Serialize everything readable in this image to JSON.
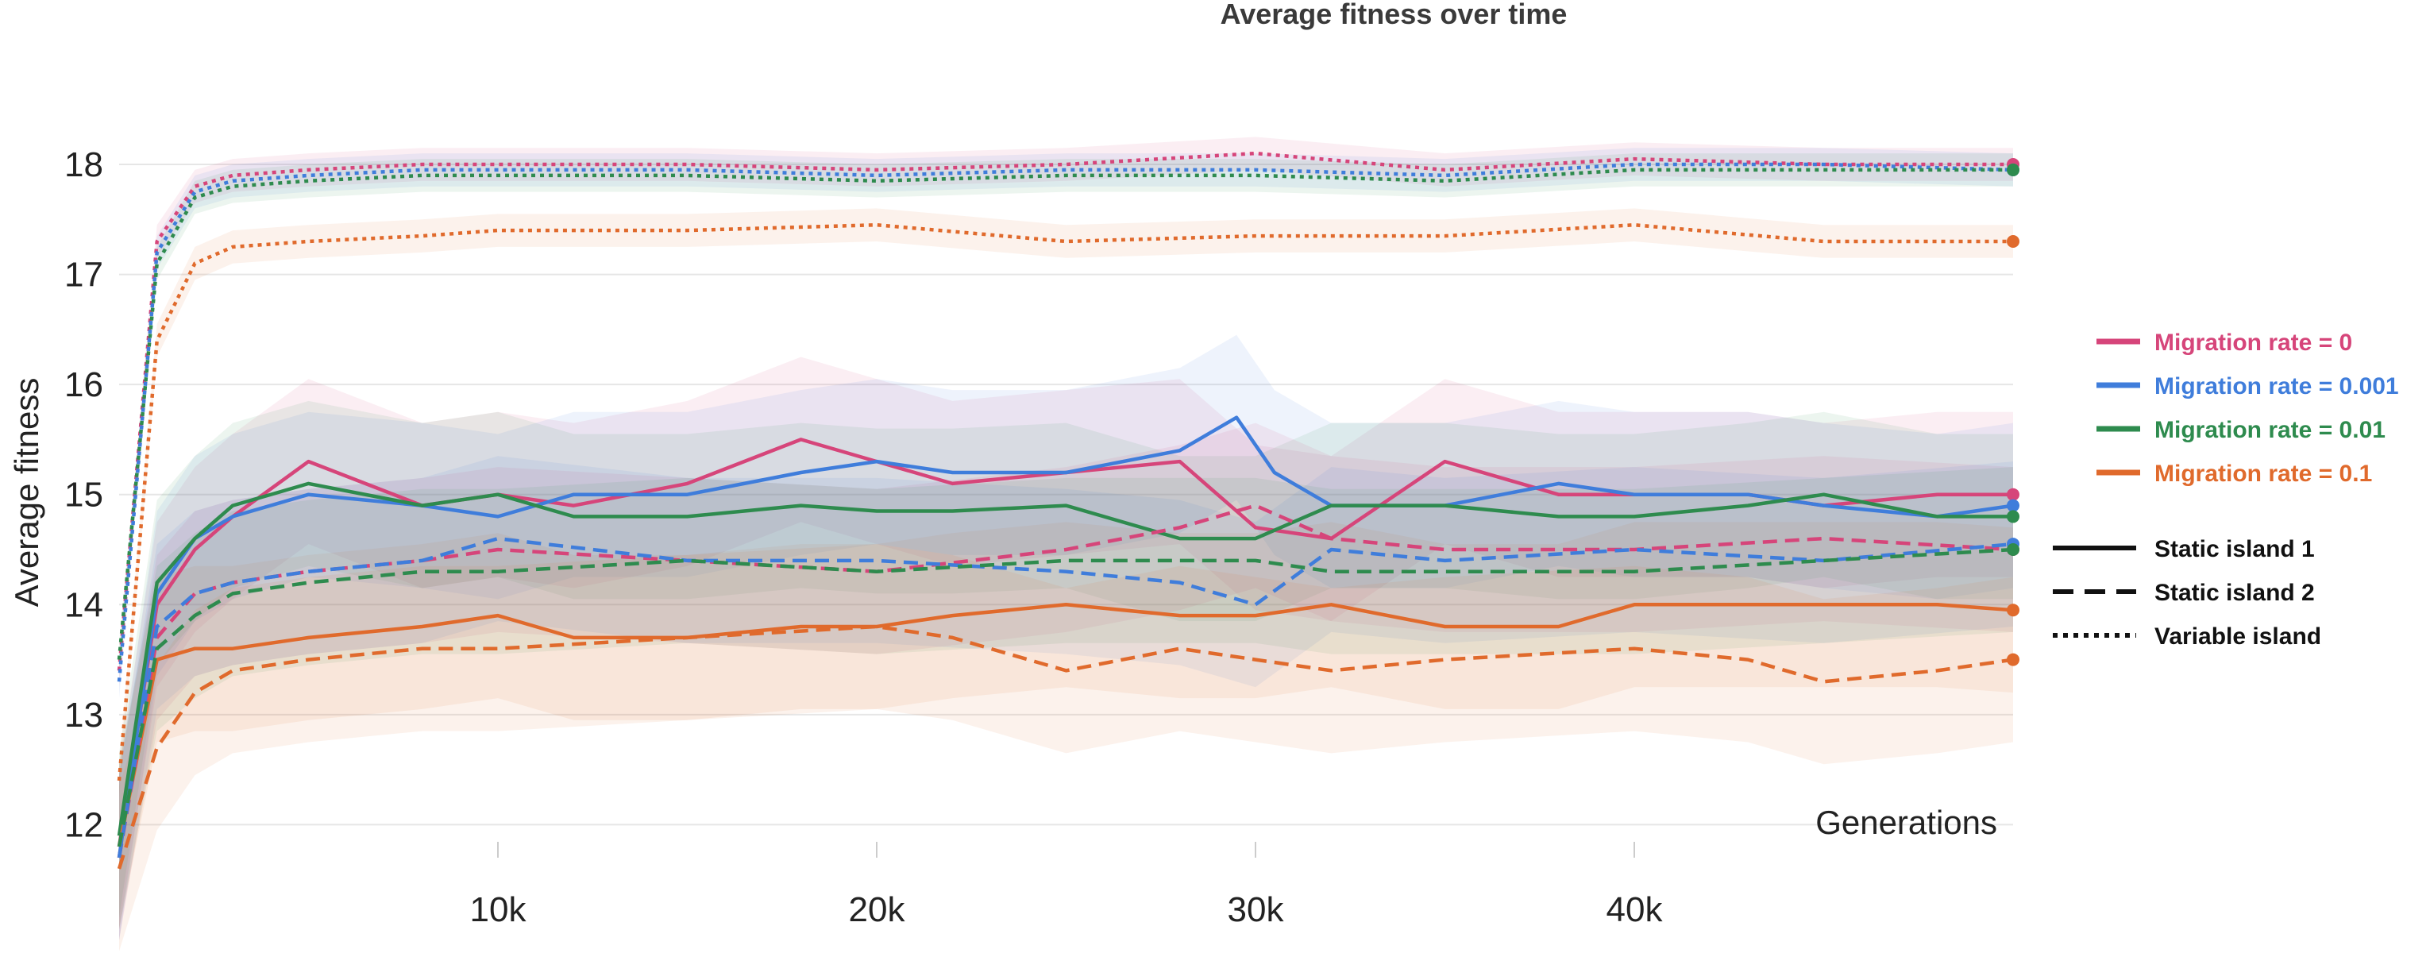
{
  "chart_data": {
    "type": "line",
    "title": "Average fitness over time",
    "xlabel": "Generations",
    "ylabel": "Average fitness",
    "xlim": [
      0,
      50000
    ],
    "ylim": [
      11.7,
      18.7
    ],
    "x_ticks": [
      10000,
      20000,
      30000,
      40000
    ],
    "x_tick_labels": [
      "10k",
      "20k",
      "30k",
      "40k"
    ],
    "y_ticks": [
      12,
      13,
      14,
      15,
      16,
      17,
      18
    ],
    "y_tick_labels": [
      "12",
      "13",
      "14",
      "15",
      "16",
      "17",
      "18"
    ],
    "grid": true,
    "shaded_bands": true,
    "legend_position": "right",
    "colors": {
      "Migration rate = 0": "#d6457a",
      "Migration rate = 0.001": "#3f7ddb",
      "Migration rate = 0.01": "#2e8b4e",
      "Migration rate = 0.1": "#e06a2c"
    },
    "legend": {
      "color_entries": [
        "Migration rate = 0",
        "Migration rate = 0.001",
        "Migration rate = 0.01",
        "Migration rate = 0.1"
      ],
      "style_entries": [
        {
          "label": "Static island 1",
          "dash": "solid"
        },
        {
          "label": "Static island 2",
          "dash": "dashed"
        },
        {
          "label": "Variable island",
          "dash": "dotted"
        }
      ]
    },
    "series": [
      {
        "migration": "Migration rate = 0",
        "island": "Variable island",
        "x": [
          0,
          1000,
          2000,
          3000,
          5000,
          8000,
          10000,
          15000,
          20000,
          25000,
          30000,
          35000,
          40000,
          45000,
          50000
        ],
        "y": [
          13.4,
          17.3,
          17.8,
          17.9,
          17.95,
          18.0,
          18.0,
          18.0,
          17.95,
          18.0,
          18.1,
          17.95,
          18.05,
          18.0,
          18.0
        ],
        "band": 0.15
      },
      {
        "migration": "Migration rate = 0.001",
        "island": "Variable island",
        "x": [
          0,
          1000,
          2000,
          3000,
          5000,
          8000,
          10000,
          15000,
          20000,
          25000,
          30000,
          35000,
          40000,
          45000,
          50000
        ],
        "y": [
          13.3,
          17.2,
          17.75,
          17.85,
          17.9,
          17.95,
          17.95,
          17.95,
          17.9,
          17.95,
          17.95,
          17.9,
          18.0,
          18.0,
          17.95
        ],
        "band": 0.15
      },
      {
        "migration": "Migration rate = 0.01",
        "island": "Variable island",
        "x": [
          0,
          1000,
          2000,
          3000,
          5000,
          8000,
          10000,
          15000,
          20000,
          25000,
          30000,
          35000,
          40000,
          45000,
          50000
        ],
        "y": [
          13.5,
          17.1,
          17.7,
          17.8,
          17.85,
          17.9,
          17.9,
          17.9,
          17.85,
          17.9,
          17.9,
          17.85,
          17.95,
          17.95,
          17.95
        ],
        "band": 0.15
      },
      {
        "migration": "Migration rate = 0.1",
        "island": "Variable island",
        "x": [
          0,
          1000,
          2000,
          3000,
          5000,
          8000,
          10000,
          15000,
          20000,
          25000,
          30000,
          35000,
          40000,
          45000,
          50000
        ],
        "y": [
          12.4,
          16.4,
          17.1,
          17.25,
          17.3,
          17.35,
          17.4,
          17.4,
          17.45,
          17.3,
          17.35,
          17.35,
          17.45,
          17.3,
          17.3
        ],
        "band": 0.15
      },
      {
        "migration": "Migration rate = 0",
        "island": "Static island 1",
        "x": [
          0,
          1000,
          2000,
          3000,
          5000,
          8000,
          10000,
          12000,
          15000,
          18000,
          20000,
          22000,
          25000,
          28000,
          30000,
          32000,
          35000,
          38000,
          40000,
          43000,
          45000,
          48000,
          50000
        ],
        "y": [
          11.8,
          14.0,
          14.5,
          14.8,
          15.3,
          14.9,
          15.0,
          14.9,
          15.1,
          15.5,
          15.3,
          15.1,
          15.2,
          15.3,
          14.7,
          14.6,
          15.3,
          15.0,
          15.0,
          15.0,
          14.9,
          15.0,
          15.0
        ],
        "band": 0.75
      },
      {
        "migration": "Migration rate = 0.001",
        "island": "Static island 1",
        "x": [
          0,
          1000,
          2000,
          3000,
          5000,
          8000,
          10000,
          12000,
          15000,
          18000,
          20000,
          22000,
          25000,
          28000,
          29500,
          30500,
          32000,
          35000,
          38000,
          40000,
          43000,
          45000,
          48000,
          50000
        ],
        "y": [
          11.7,
          14.1,
          14.6,
          14.8,
          15.0,
          14.9,
          14.8,
          15.0,
          15.0,
          15.2,
          15.3,
          15.2,
          15.2,
          15.4,
          15.7,
          15.2,
          14.9,
          14.9,
          15.1,
          15.0,
          15.0,
          14.9,
          14.8,
          14.9
        ],
        "band": 0.75
      },
      {
        "migration": "Migration rate = 0.01",
        "island": "Static island 1",
        "x": [
          0,
          1000,
          2000,
          3000,
          5000,
          8000,
          10000,
          12000,
          15000,
          18000,
          20000,
          22000,
          25000,
          28000,
          30000,
          32000,
          35000,
          38000,
          40000,
          43000,
          45000,
          48000,
          50000
        ],
        "y": [
          11.9,
          14.2,
          14.6,
          14.9,
          15.1,
          14.9,
          15.0,
          14.8,
          14.8,
          14.9,
          14.85,
          14.85,
          14.9,
          14.6,
          14.6,
          14.9,
          14.9,
          14.8,
          14.8,
          14.9,
          15.0,
          14.8,
          14.8
        ],
        "band": 0.75
      },
      {
        "migration": "Migration rate = 0.1",
        "island": "Static island 1",
        "x": [
          0,
          1000,
          2000,
          3000,
          5000,
          8000,
          10000,
          12000,
          15000,
          18000,
          20000,
          22000,
          25000,
          28000,
          30000,
          32000,
          35000,
          38000,
          40000,
          43000,
          45000,
          48000,
          50000
        ],
        "y": [
          11.8,
          13.5,
          13.6,
          13.6,
          13.7,
          13.8,
          13.9,
          13.7,
          13.7,
          13.8,
          13.8,
          13.9,
          14.0,
          13.9,
          13.9,
          14.0,
          13.8,
          13.8,
          14.0,
          14.0,
          14.0,
          14.0,
          13.95
        ],
        "band": 0.75
      },
      {
        "migration": "Migration rate = 0",
        "island": "Static island 2",
        "x": [
          0,
          1000,
          2000,
          3000,
          5000,
          8000,
          10000,
          15000,
          20000,
          25000,
          28000,
          30000,
          32000,
          35000,
          40000,
          45000,
          50000
        ],
        "y": [
          11.7,
          13.7,
          14.1,
          14.2,
          14.3,
          14.4,
          14.5,
          14.4,
          14.3,
          14.5,
          14.7,
          14.9,
          14.6,
          14.5,
          14.5,
          14.6,
          14.5
        ],
        "band": 0.75
      },
      {
        "migration": "Migration rate = 0.001",
        "island": "Static island 2",
        "x": [
          0,
          1000,
          2000,
          3000,
          5000,
          8000,
          10000,
          15000,
          20000,
          25000,
          28000,
          30000,
          32000,
          35000,
          40000,
          45000,
          50000
        ],
        "y": [
          11.7,
          13.8,
          14.1,
          14.2,
          14.3,
          14.4,
          14.6,
          14.4,
          14.4,
          14.3,
          14.2,
          14.0,
          14.5,
          14.4,
          14.5,
          14.4,
          14.55
        ],
        "band": 0.75
      },
      {
        "migration": "Migration rate = 0.01",
        "island": "Static island 2",
        "x": [
          0,
          1000,
          2000,
          3000,
          5000,
          8000,
          10000,
          15000,
          20000,
          25000,
          28000,
          30000,
          32000,
          35000,
          40000,
          45000,
          50000
        ],
        "y": [
          11.8,
          13.6,
          13.9,
          14.1,
          14.2,
          14.3,
          14.3,
          14.4,
          14.3,
          14.4,
          14.4,
          14.4,
          14.3,
          14.3,
          14.3,
          14.4,
          14.5
        ],
        "band": 0.75
      },
      {
        "migration": "Migration rate = 0.1",
        "island": "Static island 2",
        "x": [
          0,
          1000,
          2000,
          3000,
          5000,
          8000,
          10000,
          15000,
          20000,
          22000,
          25000,
          28000,
          30000,
          32000,
          35000,
          40000,
          43000,
          45000,
          48000,
          50000
        ],
        "y": [
          11.6,
          12.7,
          13.2,
          13.4,
          13.5,
          13.6,
          13.6,
          13.7,
          13.8,
          13.7,
          13.4,
          13.6,
          13.5,
          13.4,
          13.5,
          13.6,
          13.5,
          13.3,
          13.4,
          13.5
        ],
        "band": 0.75
      }
    ]
  }
}
